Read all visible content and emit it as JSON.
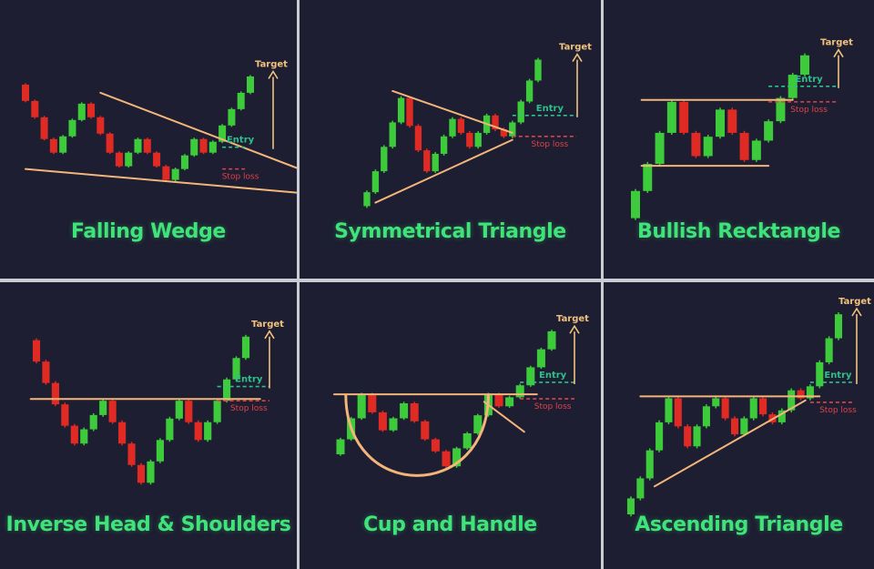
{
  "colors": {
    "background": "#1d1e31",
    "bullish": "#3ecb3b",
    "bearish": "#e02a24",
    "trendline": "#f3b57a",
    "target": "#f1c27d",
    "entry": "#2ec08c",
    "stop_loss": "#e0424a",
    "title": "#3fe37a"
  },
  "labels": {
    "target": "Target",
    "entry": "Entry",
    "stop_loss": "Stop loss"
  },
  "chart_data": [
    {
      "type": "candlestick",
      "title": "Falling Wedge",
      "candles": [
        {
          "open": 90,
          "close": 78,
          "high": 91,
          "low": 77
        },
        {
          "open": 78,
          "close": 66,
          "high": 79,
          "low": 65
        },
        {
          "open": 66,
          "close": 50,
          "high": 67,
          "low": 49
        },
        {
          "open": 50,
          "close": 40,
          "high": 51,
          "low": 39
        },
        {
          "open": 40,
          "close": 52,
          "high": 53,
          "low": 39
        },
        {
          "open": 52,
          "close": 64,
          "high": 65,
          "low": 51
        },
        {
          "open": 64,
          "close": 76,
          "high": 77,
          "low": 63
        },
        {
          "open": 76,
          "close": 66,
          "high": 77,
          "low": 65
        },
        {
          "open": 66,
          "close": 54,
          "high": 67,
          "low": 53
        },
        {
          "open": 54,
          "close": 40,
          "high": 55,
          "low": 39
        },
        {
          "open": 40,
          "close": 30,
          "high": 41,
          "low": 29
        },
        {
          "open": 30,
          "close": 40,
          "high": 41,
          "low": 29
        },
        {
          "open": 40,
          "close": 50,
          "high": 51,
          "low": 39
        },
        {
          "open": 50,
          "close": 40,
          "high": 51,
          "low": 39
        },
        {
          "open": 40,
          "close": 30,
          "high": 41,
          "low": 29
        },
        {
          "open": 30,
          "close": 20,
          "high": 31,
          "low": 19
        },
        {
          "open": 20,
          "close": 28,
          "high": 29,
          "low": 19
        },
        {
          "open": 28,
          "close": 38,
          "high": 39,
          "low": 27
        },
        {
          "open": 38,
          "close": 50,
          "high": 51,
          "low": 37
        },
        {
          "open": 50,
          "close": 40,
          "high": 51,
          "low": 39
        },
        {
          "open": 40,
          "close": 48,
          "high": 49,
          "low": 39
        },
        {
          "open": 48,
          "close": 60,
          "high": 61,
          "low": 47
        },
        {
          "open": 60,
          "close": 72,
          "high": 73,
          "low": 59
        },
        {
          "open": 72,
          "close": 84,
          "high": 85,
          "low": 71
        },
        {
          "open": 84,
          "close": 96,
          "high": 97,
          "low": 83
        }
      ],
      "trendlines": [
        [
          [
            8,
            84
          ],
          [
            30,
            26
          ]
        ],
        [
          [
            0,
            28
          ],
          [
            30,
            10
          ]
        ]
      ],
      "entry": 44,
      "stop_loss": 28,
      "ylim": [
        5,
        100
      ]
    },
    {
      "type": "candlestick",
      "title": "Symmetrical Triangle",
      "candles": [
        {
          "open": 10,
          "close": 18,
          "high": 19,
          "low": 9
        },
        {
          "open": 18,
          "close": 30,
          "high": 31,
          "low": 17
        },
        {
          "open": 30,
          "close": 44,
          "high": 45,
          "low": 29
        },
        {
          "open": 44,
          "close": 58,
          "high": 59,
          "low": 43
        },
        {
          "open": 58,
          "close": 72,
          "high": 73,
          "low": 57
        },
        {
          "open": 72,
          "close": 56,
          "high": 73,
          "low": 55
        },
        {
          "open": 56,
          "close": 42,
          "high": 57,
          "low": 41
        },
        {
          "open": 42,
          "close": 30,
          "high": 43,
          "low": 29
        },
        {
          "open": 30,
          "close": 40,
          "high": 41,
          "low": 29
        },
        {
          "open": 40,
          "close": 50,
          "high": 51,
          "low": 39
        },
        {
          "open": 50,
          "close": 60,
          "high": 61,
          "low": 49
        },
        {
          "open": 60,
          "close": 52,
          "high": 61,
          "low": 51
        },
        {
          "open": 52,
          "close": 44,
          "high": 53,
          "low": 43
        },
        {
          "open": 44,
          "close": 52,
          "high": 53,
          "low": 43
        },
        {
          "open": 52,
          "close": 62,
          "high": 63,
          "low": 51
        },
        {
          "open": 62,
          "close": 54,
          "high": 63,
          "low": 53
        },
        {
          "open": 54,
          "close": 50,
          "high": 55,
          "low": 49
        },
        {
          "open": 50,
          "close": 58,
          "high": 59,
          "low": 49
        },
        {
          "open": 58,
          "close": 70,
          "high": 71,
          "low": 57
        },
        {
          "open": 70,
          "close": 82,
          "high": 83,
          "low": 69
        },
        {
          "open": 82,
          "close": 94,
          "high": 95,
          "low": 81
        }
      ],
      "trendlines": [
        [
          [
            3,
            76
          ],
          [
            17,
            52
          ]
        ],
        [
          [
            1,
            12
          ],
          [
            17,
            48
          ]
        ]
      ],
      "entry": 62,
      "stop_loss": 50,
      "ylim": [
        5,
        100
      ]
    },
    {
      "type": "candlestick",
      "title": "Bullish Recktangle",
      "candles": [
        {
          "open": 6,
          "close": 20,
          "high": 21,
          "low": 5
        },
        {
          "open": 20,
          "close": 34,
          "high": 35,
          "low": 19
        },
        {
          "open": 34,
          "close": 50,
          "high": 51,
          "low": 33
        },
        {
          "open": 50,
          "close": 66,
          "high": 67,
          "low": 49
        },
        {
          "open": 66,
          "close": 50,
          "high": 67,
          "low": 49
        },
        {
          "open": 50,
          "close": 38,
          "high": 51,
          "low": 37
        },
        {
          "open": 38,
          "close": 48,
          "high": 49,
          "low": 37
        },
        {
          "open": 48,
          "close": 62,
          "high": 63,
          "low": 47
        },
        {
          "open": 62,
          "close": 50,
          "high": 63,
          "low": 49
        },
        {
          "open": 50,
          "close": 36,
          "high": 51,
          "low": 35
        },
        {
          "open": 36,
          "close": 46,
          "high": 47,
          "low": 35
        },
        {
          "open": 46,
          "close": 56,
          "high": 57,
          "low": 45
        },
        {
          "open": 56,
          "close": 68,
          "high": 69,
          "low": 55
        },
        {
          "open": 68,
          "close": 80,
          "high": 81,
          "low": 67
        },
        {
          "open": 80,
          "close": 90,
          "high": 91,
          "low": 79
        }
      ],
      "trendlines": [
        [
          [
            0.5,
            67
          ],
          [
            13,
            67
          ]
        ],
        [
          [
            0.5,
            33
          ],
          [
            11,
            33
          ]
        ]
      ],
      "entry": 74,
      "stop_loss": 66,
      "ylim": [
        3,
        96
      ]
    },
    {
      "type": "candlestick",
      "title": "Inverse Head & Shoulders",
      "candles": [
        {
          "open": 92,
          "close": 80,
          "high": 93,
          "low": 79
        },
        {
          "open": 80,
          "close": 68,
          "high": 81,
          "low": 67
        },
        {
          "open": 68,
          "close": 56,
          "high": 69,
          "low": 55
        },
        {
          "open": 56,
          "close": 44,
          "high": 57,
          "low": 43
        },
        {
          "open": 44,
          "close": 34,
          "high": 45,
          "low": 33
        },
        {
          "open": 34,
          "close": 42,
          "high": 43,
          "low": 33
        },
        {
          "open": 42,
          "close": 50,
          "high": 51,
          "low": 41
        },
        {
          "open": 50,
          "close": 58,
          "high": 59,
          "low": 49
        },
        {
          "open": 58,
          "close": 46,
          "high": 59,
          "low": 45
        },
        {
          "open": 46,
          "close": 34,
          "high": 47,
          "low": 33
        },
        {
          "open": 34,
          "close": 22,
          "high": 35,
          "low": 21
        },
        {
          "open": 22,
          "close": 12,
          "high": 23,
          "low": 11
        },
        {
          "open": 12,
          "close": 24,
          "high": 25,
          "low": 11
        },
        {
          "open": 24,
          "close": 36,
          "high": 37,
          "low": 23
        },
        {
          "open": 36,
          "close": 48,
          "high": 49,
          "low": 35
        },
        {
          "open": 48,
          "close": 58,
          "high": 59,
          "low": 47
        },
        {
          "open": 58,
          "close": 46,
          "high": 59,
          "low": 45
        },
        {
          "open": 46,
          "close": 36,
          "high": 47,
          "low": 35
        },
        {
          "open": 36,
          "close": 46,
          "high": 47,
          "low": 35
        },
        {
          "open": 46,
          "close": 58,
          "high": 59,
          "low": 45
        },
        {
          "open": 58,
          "close": 70,
          "high": 71,
          "low": 57
        },
        {
          "open": 70,
          "close": 82,
          "high": 83,
          "low": 69
        },
        {
          "open": 82,
          "close": 94,
          "high": 95,
          "low": 81
        }
      ],
      "trendlines": [
        [
          [
            -0.6,
            59
          ],
          [
            23.5,
            59
          ]
        ]
      ],
      "entry": 66,
      "stop_loss": 58,
      "ylim": [
        5,
        100
      ]
    },
    {
      "type": "candlestick",
      "title": "Cup and Handle",
      "candles": [
        {
          "open": 20,
          "close": 30,
          "high": 31,
          "low": 19
        },
        {
          "open": 30,
          "close": 44,
          "high": 45,
          "low": 29
        },
        {
          "open": 44,
          "close": 60,
          "high": 61,
          "low": 43
        },
        {
          "open": 60,
          "close": 48,
          "high": 61,
          "low": 47
        },
        {
          "open": 48,
          "close": 36,
          "high": 49,
          "low": 35
        },
        {
          "open": 36,
          "close": 44,
          "high": 45,
          "low": 35
        },
        {
          "open": 44,
          "close": 54,
          "high": 55,
          "low": 43
        },
        {
          "open": 54,
          "close": 42,
          "high": 55,
          "low": 41
        },
        {
          "open": 42,
          "close": 30,
          "high": 43,
          "low": 29
        },
        {
          "open": 30,
          "close": 22,
          "high": 31,
          "low": 21
        },
        {
          "open": 22,
          "close": 12,
          "high": 23,
          "low": 11
        },
        {
          "open": 12,
          "close": 24,
          "high": 25,
          "low": 11
        },
        {
          "open": 24,
          "close": 34,
          "high": 35,
          "low": 23
        },
        {
          "open": 34,
          "close": 46,
          "high": 47,
          "low": 33
        },
        {
          "open": 46,
          "close": 60,
          "high": 61,
          "low": 45
        },
        {
          "open": 60,
          "close": 52,
          "high": 61,
          "low": 51
        },
        {
          "open": 52,
          "close": 58,
          "high": 59,
          "low": 51
        },
        {
          "open": 58,
          "close": 66,
          "high": 67,
          "low": 57
        },
        {
          "open": 66,
          "close": 78,
          "high": 79,
          "low": 65
        },
        {
          "open": 78,
          "close": 90,
          "high": 91,
          "low": 77
        },
        {
          "open": 90,
          "close": 102,
          "high": 103,
          "low": 89
        }
      ],
      "trendlines": [
        [
          [
            -0.6,
            60
          ],
          [
            18.6,
            60
          ]
        ],
        [
          [
            13.6,
            55
          ],
          [
            17.4,
            35
          ]
        ]
      ],
      "cup": {
        "from": [
          0.5,
          60
        ],
        "to": [
          14,
          60
        ],
        "bottom": 6
      },
      "entry": 68,
      "stop_loss": 57,
      "ylim": [
        0,
        108
      ]
    },
    {
      "type": "candlestick",
      "title": "Ascending Triangle",
      "candles": [
        {
          "open": 8,
          "close": 16,
          "high": 17,
          "low": 7
        },
        {
          "open": 16,
          "close": 26,
          "high": 27,
          "low": 15
        },
        {
          "open": 26,
          "close": 40,
          "high": 41,
          "low": 25
        },
        {
          "open": 40,
          "close": 54,
          "high": 55,
          "low": 39
        },
        {
          "open": 54,
          "close": 66,
          "high": 67,
          "low": 53
        },
        {
          "open": 66,
          "close": 52,
          "high": 67,
          "low": 51
        },
        {
          "open": 52,
          "close": 42,
          "high": 53,
          "low": 41
        },
        {
          "open": 42,
          "close": 52,
          "high": 53,
          "low": 41
        },
        {
          "open": 52,
          "close": 62,
          "high": 63,
          "low": 51
        },
        {
          "open": 62,
          "close": 66,
          "high": 67,
          "low": 61
        },
        {
          "open": 66,
          "close": 56,
          "high": 67,
          "low": 55
        },
        {
          "open": 56,
          "close": 48,
          "high": 57,
          "low": 47
        },
        {
          "open": 48,
          "close": 56,
          "high": 57,
          "low": 47
        },
        {
          "open": 56,
          "close": 66,
          "high": 67,
          "low": 55
        },
        {
          "open": 66,
          "close": 58,
          "high": 67,
          "low": 57
        },
        {
          "open": 58,
          "close": 54,
          "high": 59,
          "low": 53
        },
        {
          "open": 54,
          "close": 60,
          "high": 61,
          "low": 53
        },
        {
          "open": 60,
          "close": 70,
          "high": 71,
          "low": 59
        },
        {
          "open": 70,
          "close": 66,
          "high": 71,
          "low": 65
        },
        {
          "open": 66,
          "close": 72,
          "high": 73,
          "low": 65
        },
        {
          "open": 72,
          "close": 84,
          "high": 85,
          "low": 71
        },
        {
          "open": 84,
          "close": 96,
          "high": 97,
          "low": 83
        },
        {
          "open": 96,
          "close": 108,
          "high": 109,
          "low": 95
        }
      ],
      "trendlines": [
        [
          [
            1,
            67
          ],
          [
            20,
            67
          ]
        ],
        [
          [
            2.5,
            22
          ],
          [
            18.5,
            65
          ]
        ]
      ],
      "entry": 74,
      "stop_loss": 64,
      "ylim": [
        3,
        114
      ]
    }
  ]
}
